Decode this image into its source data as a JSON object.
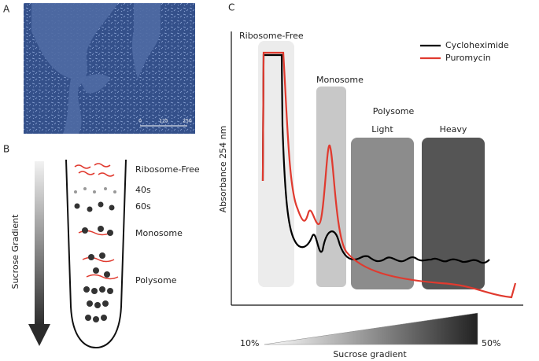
{
  "panels": {
    "a": {
      "label": "A",
      "scale_ticks": [
        "0",
        "125",
        "250"
      ]
    },
    "b": {
      "label": "B",
      "gradient_label": "Sucrose Gradient",
      "fractions": [
        "Ribosome-Free",
        "40s",
        "60s",
        "Monosome",
        "Polysome"
      ]
    },
    "c": {
      "label": "C",
      "y_axis_label": "Absorbance 254 nm",
      "regions": [
        "Ribosome-Free",
        "Monosome",
        "Polysome",
        "Light",
        "Heavy"
      ],
      "legend": [
        {
          "name": "Cycloheximide",
          "color": "#000000"
        },
        {
          "name": "Puromycin",
          "color": "#e03a2f"
        }
      ],
      "gradient": {
        "start": "10%",
        "end": "50%",
        "label": "Sucrose gradient"
      }
    }
  }
}
